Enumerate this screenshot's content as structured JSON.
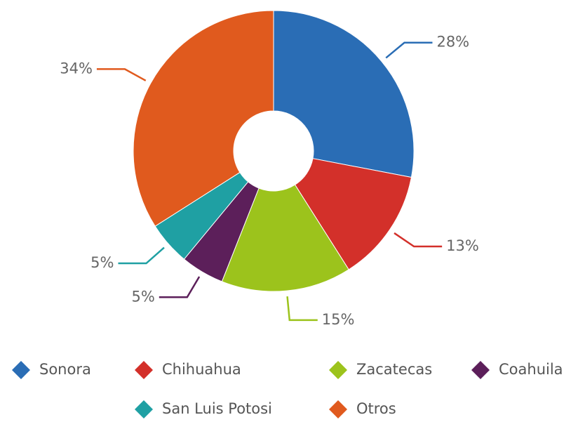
{
  "chart_data": {
    "type": "pie",
    "donut": true,
    "categories": [
      "Sonora",
      "Chihuahua",
      "Zacatecas",
      "Coahuila",
      "San Luis Potosi",
      "Otros"
    ],
    "values": [
      28,
      13,
      15,
      5,
      5,
      34
    ],
    "value_labels": [
      "28%",
      "13%",
      "15%",
      "5%",
      "5%",
      "34%"
    ],
    "colors": [
      "#2a6db5",
      "#d3302a",
      "#9cc31c",
      "#5c1f5a",
      "#1fa0a3",
      "#e05a1e"
    ],
    "legend": "bottom"
  }
}
